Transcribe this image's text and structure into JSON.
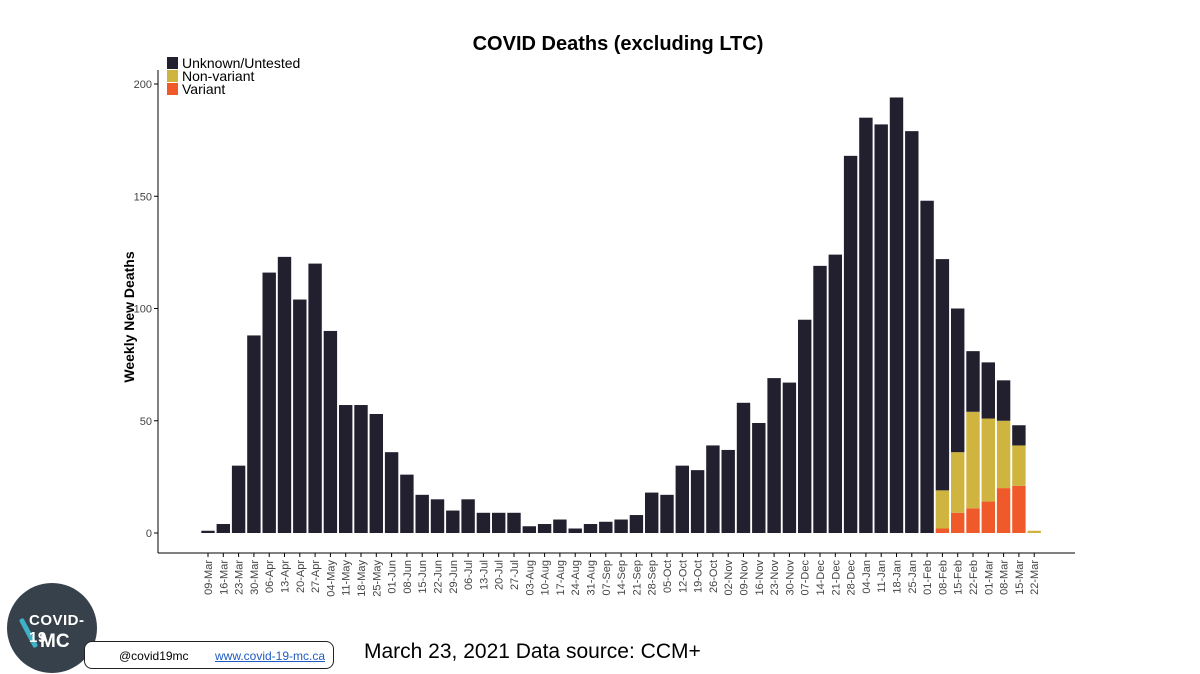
{
  "chart_data": {
    "type": "bar",
    "stacked": true,
    "title": "COVID Deaths (excluding LTC)",
    "xlabel": "",
    "ylabel": "Weekly New Deaths",
    "ylim": [
      0,
      200
    ],
    "yticks": [
      0,
      50,
      100,
      150,
      200
    ],
    "legend_position": "top-left",
    "categories": [
      "09-Mar",
      "16-Mar",
      "23-Mar",
      "30-Mar",
      "06-Apr",
      "13-Apr",
      "20-Apr",
      "27-Apr",
      "04-May",
      "11-May",
      "18-May",
      "25-May",
      "01-Jun",
      "08-Jun",
      "15-Jun",
      "22-Jun",
      "29-Jun",
      "06-Jul",
      "13-Jul",
      "20-Jul",
      "27-Jul",
      "03-Aug",
      "10-Aug",
      "17-Aug",
      "24-Aug",
      "31-Aug",
      "07-Sep",
      "14-Sep",
      "21-Sep",
      "28-Sep",
      "05-Oct",
      "12-Oct",
      "19-Oct",
      "26-Oct",
      "02-Nov",
      "09-Nov",
      "16-Nov",
      "23-Nov",
      "30-Nov",
      "07-Dec",
      "14-Dec",
      "21-Dec",
      "28-Dec",
      "04-Jan",
      "11-Jan",
      "18-Jan",
      "25-Jan",
      "01-Feb",
      "08-Feb",
      "15-Feb",
      "22-Feb",
      "01-Mar",
      "08-Mar",
      "15-Mar",
      "22-Mar"
    ],
    "series": [
      {
        "name": "Variant",
        "color": "#f0592a",
        "values": [
          0,
          0,
          0,
          0,
          0,
          0,
          0,
          0,
          0,
          0,
          0,
          0,
          0,
          0,
          0,
          0,
          0,
          0,
          0,
          0,
          0,
          0,
          0,
          0,
          0,
          0,
          0,
          0,
          0,
          0,
          0,
          0,
          0,
          0,
          0,
          0,
          0,
          0,
          0,
          0,
          0,
          0,
          0,
          0,
          0,
          0,
          0,
          0,
          2,
          9,
          11,
          14,
          20,
          21,
          0
        ]
      },
      {
        "name": "Non-variant",
        "color": "#cfb43f",
        "values": [
          0,
          0,
          0,
          0,
          0,
          0,
          0,
          0,
          0,
          0,
          0,
          0,
          0,
          0,
          0,
          0,
          0,
          0,
          0,
          0,
          0,
          0,
          0,
          0,
          0,
          0,
          0,
          0,
          0,
          0,
          0,
          0,
          0,
          0,
          0,
          0,
          0,
          0,
          0,
          0,
          0,
          0,
          0,
          0,
          0,
          0,
          0,
          0,
          17,
          27,
          43,
          37,
          30,
          18,
          1
        ]
      },
      {
        "name": "Unknown/Untested",
        "color": "#221f2e",
        "values": [
          1,
          4,
          30,
          88,
          116,
          123,
          104,
          120,
          90,
          57,
          57,
          53,
          36,
          26,
          17,
          15,
          10,
          15,
          9,
          9,
          9,
          3,
          4,
          6,
          2,
          4,
          5,
          6,
          8,
          18,
          17,
          30,
          28,
          39,
          37,
          58,
          49,
          69,
          67,
          95,
          119,
          124,
          168,
          185,
          182,
          194,
          179,
          148,
          103,
          64,
          27,
          25,
          18,
          9,
          0
        ]
      }
    ],
    "legend_order": [
      "Unknown/Untested",
      "Non-variant",
      "Variant"
    ]
  },
  "footer": {
    "logo_line1": "COVID-19",
    "logo_line2": "MC",
    "handle": "@covid19mc",
    "website": "www.covid-19-mc.ca",
    "date_source": "March 23, 2021 Data source: CCM+"
  }
}
